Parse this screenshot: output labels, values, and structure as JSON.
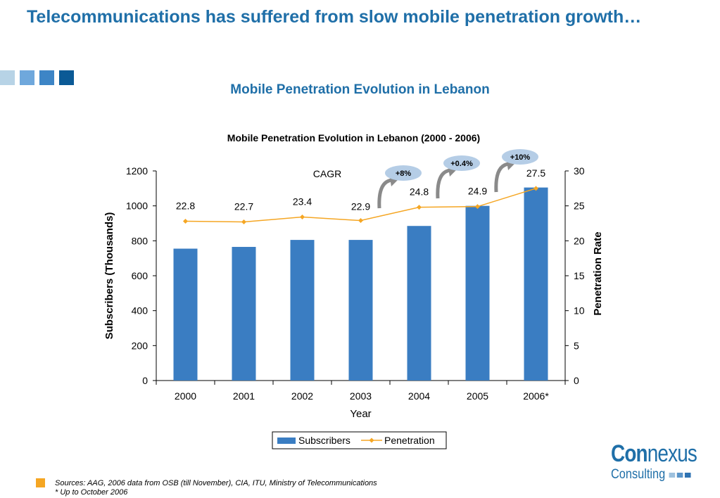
{
  "page": {
    "title": "Telecommunications has suffered from slow mobile penetration growth…",
    "subtitle": "Mobile Penetration Evolution in Lebanon"
  },
  "decor": {
    "square_colors": [
      "#b7d3e6",
      "#6fa8dc",
      "#3d85c6",
      "#0b5a96"
    ]
  },
  "chart_data": {
    "type": "bar",
    "title": "Mobile Penetration Evolution in Lebanon (2000 - 2006)",
    "xlabel": "Year",
    "ylabel": "Subscribers (Thousands)",
    "y2label": "Penetration Rate",
    "categories": [
      "2000",
      "2001",
      "2002",
      "2003",
      "2004",
      "2005",
      "2006*"
    ],
    "ylim": [
      0,
      1200
    ],
    "yticks": [
      0,
      200,
      400,
      600,
      800,
      1000,
      1200
    ],
    "y2lim": [
      0,
      30
    ],
    "y2ticks": [
      0,
      5,
      10,
      15,
      20,
      25,
      30
    ],
    "grid": false,
    "legend_position": "bottom",
    "series": [
      {
        "name": "Subscribers",
        "type": "bar",
        "axis": "left",
        "color": "#3a7dc2",
        "values": [
          755,
          765,
          805,
          805,
          885,
          1000,
          1105
        ]
      },
      {
        "name": "Penetration",
        "type": "line",
        "axis": "right",
        "color": "#f5a623",
        "values": [
          22.8,
          22.7,
          23.4,
          22.9,
          24.8,
          24.9,
          27.5
        ],
        "labels": [
          "22.8",
          "22.7",
          "23.4",
          "22.9",
          "24.8",
          "24.9",
          "27.5"
        ]
      }
    ],
    "cagr_label": "CAGR",
    "cagr_badges": [
      {
        "text": "+8%",
        "from_index": 3,
        "to_index": 4
      },
      {
        "text": "+0.4%",
        "from_index": 4,
        "to_index": 5
      },
      {
        "text": "+10%",
        "from_index": 5,
        "to_index": 6
      }
    ],
    "badge_color": "#b5cde6",
    "arrow_color": "#8a8a8a"
  },
  "footer": {
    "sources": "Sources: AAG, 2006 data from OSB (till November), CIA, ITU, Ministry of Telecommunications",
    "note": "* Up to October 2006",
    "note_color": "#f5a623"
  },
  "logo": {
    "part1": "Con",
    "part2": "nexus",
    "line2": "Consulting",
    "dot_colors": [
      "#9ec1de",
      "#5b95c9",
      "#2f73b3"
    ]
  }
}
